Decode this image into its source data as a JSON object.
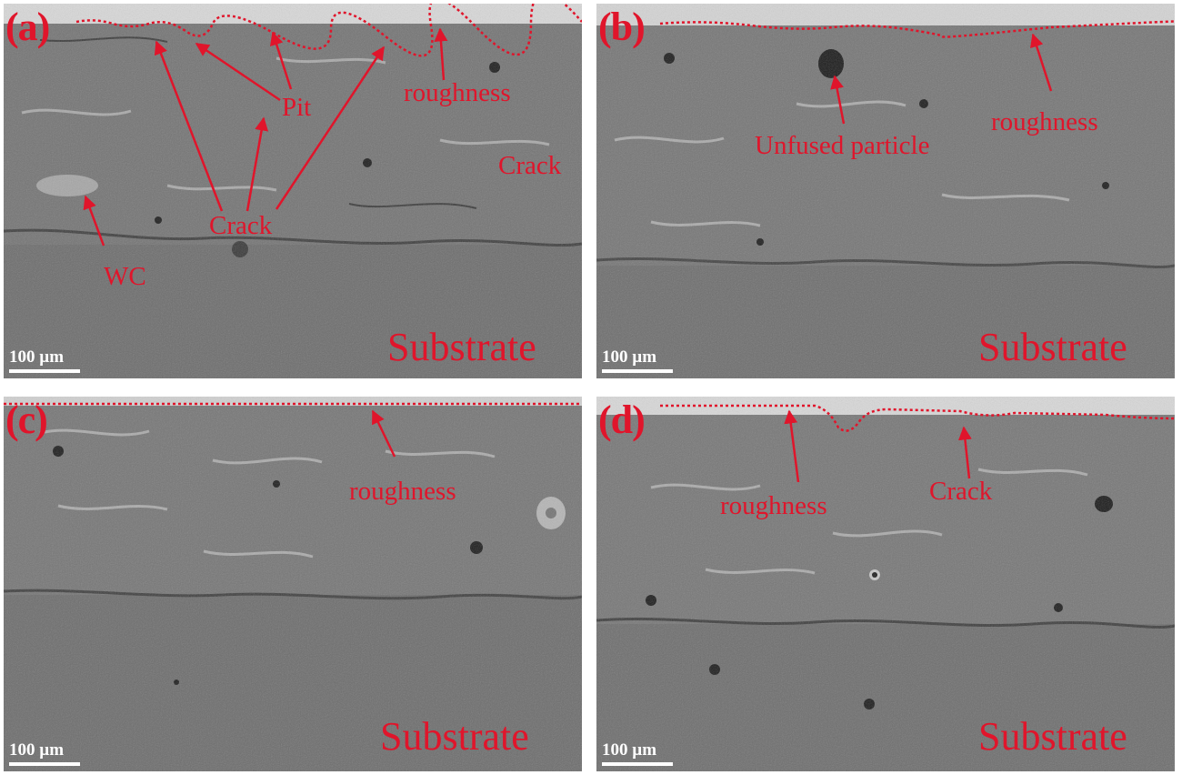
{
  "colors": {
    "annotation": "#e0152b",
    "scale_bar": "#ffffff",
    "coating": "#747474",
    "substrate": "#6d6d6d"
  },
  "scale_bar_label": "100 µm",
  "panels": [
    {
      "letter": "(a)",
      "substrate_label": "Substrate",
      "annotations": [
        "Pit",
        "roughness",
        "Crack",
        "Crack",
        "WC"
      ]
    },
    {
      "letter": "(b)",
      "substrate_label": "Substrate",
      "annotations": [
        "Unfused particle",
        "roughness"
      ]
    },
    {
      "letter": "(c)",
      "substrate_label": "Substrate",
      "annotations": [
        "roughness"
      ]
    },
    {
      "letter": "(d)",
      "substrate_label": "Substrate",
      "annotations": [
        "roughness",
        "Crack"
      ]
    }
  ]
}
